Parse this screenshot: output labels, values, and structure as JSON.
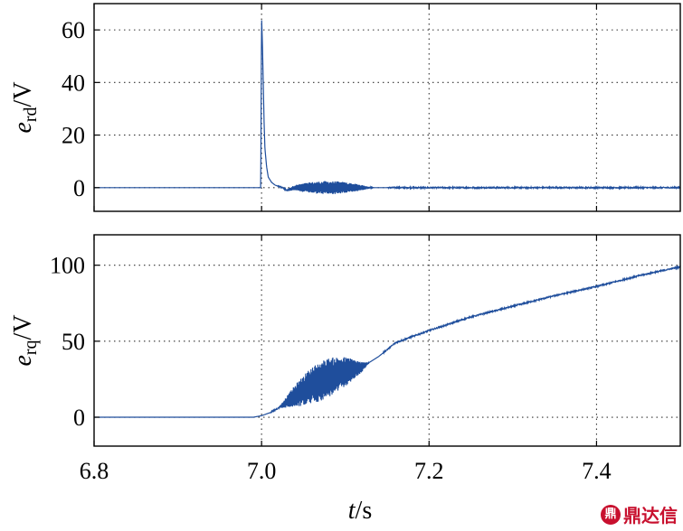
{
  "chart_data": [
    {
      "type": "line",
      "ylabel_main": "e",
      "ylabel_sub": "rd",
      "ylabel_unit": "/V",
      "xlim": [
        6.8,
        7.5
      ],
      "ylim": [
        -9,
        70
      ],
      "yticks": [
        0,
        20,
        40,
        60
      ],
      "ytick_labels": [
        "0",
        "20",
        "40",
        "60"
      ],
      "xticks": [
        6.8,
        7.0,
        7.2,
        7.4
      ],
      "grid": true,
      "series_color": "#1f4e9c",
      "series": [
        {
          "x": [
            6.8,
            6.999,
            7.0,
            7.001,
            7.002,
            7.003,
            7.004,
            7.006,
            7.008,
            7.012,
            7.016,
            7.02,
            7.025,
            7.03,
            7.04,
            7.06,
            7.08,
            7.1,
            7.12,
            7.14,
            7.15,
            7.16,
            7.18,
            7.2,
            7.3,
            7.4,
            7.5
          ],
          "y": [
            0,
            0,
            65,
            55,
            40,
            25,
            15,
            8,
            4,
            2,
            1,
            0.5,
            0,
            -1,
            0,
            0,
            0,
            0,
            0,
            0,
            0,
            0,
            0,
            0,
            0,
            0,
            0
          ]
        }
      ],
      "oscillation": {
        "x_start": 7.025,
        "x_end": 7.15,
        "amplitude": 2.5
      }
    },
    {
      "type": "line",
      "ylabel_main": "e",
      "ylabel_sub": "rq",
      "ylabel_unit": "/V",
      "xlim": [
        6.8,
        7.5
      ],
      "ylim": [
        -19,
        120
      ],
      "yticks": [
        0,
        50,
        100
      ],
      "ytick_labels": [
        "0",
        "50",
        "100"
      ],
      "xticks": [
        6.8,
        7.0,
        7.2,
        7.4
      ],
      "xtick_labels": [
        "6.8",
        "7.0",
        "7.2",
        "7.4"
      ],
      "xlabel_main": "t",
      "xlabel_unit": "/s",
      "grid": true,
      "series_color": "#1f4e9c",
      "series": [
        {
          "x": [
            6.8,
            6.99,
            7.0,
            7.01,
            7.02,
            7.04,
            7.06,
            7.08,
            7.1,
            7.12,
            7.14,
            7.16,
            7.2,
            7.25,
            7.3,
            7.35,
            7.4,
            7.45,
            7.5
          ],
          "y": [
            0,
            0,
            1,
            3,
            6,
            14,
            21,
            26,
            30,
            33,
            40,
            49,
            57,
            66,
            73,
            80,
            86,
            93,
            99
          ]
        }
      ],
      "oscillation": {
        "x_start": 7.02,
        "x_end": 7.145,
        "amplitude": 13
      }
    }
  ],
  "watermark": {
    "logo": "鼎",
    "text": "鼎达信",
    "color": "#c8102e"
  }
}
